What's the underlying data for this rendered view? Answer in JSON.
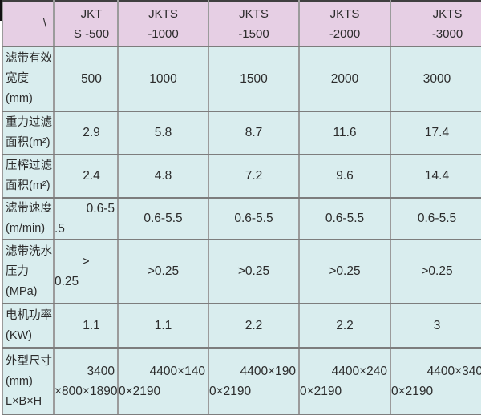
{
  "colors": {
    "header_bg": "#e6cfe4",
    "body_bg": "#d9edee",
    "border_v": "#9b9b9b",
    "border_h": "#7d7d7d",
    "top_border": "#3f3f3f",
    "text": "#2c2c2c",
    "tick": "#111111"
  },
  "table": {
    "corner_label": "\\",
    "columns": [
      {
        "line1": "JKT",
        "line2": "S -500"
      },
      {
        "line1": "JKTS",
        "line2": "-1000"
      },
      {
        "line1": "JKTS",
        "line2": "-1500"
      },
      {
        "line1": "JKTS",
        "line2": "-2000"
      },
      {
        "line1": "JKTS",
        "line2": "-3000"
      }
    ],
    "rows": [
      {
        "label_lines": [
          "滤带有效",
          "宽度",
          "(mm)"
        ],
        "values": [
          "500",
          "1000",
          "1500",
          "2000",
          "3000"
        ]
      },
      {
        "label_lines": [
          "重力过滤",
          "面积(m²)"
        ],
        "values": [
          "2.9",
          "5.8",
          "8.7",
          "11.6",
          "17.4"
        ]
      },
      {
        "label_lines": [
          "压榨过滤",
          "面积(m²)"
        ],
        "values": [
          "2.4",
          "4.8",
          "7.2",
          "9.6",
          "14.4"
        ]
      },
      {
        "label_lines": [
          "滤带速度",
          "(m/min)"
        ],
        "values": [
          {
            "line1": "0.6-5",
            "line2": ".5"
          },
          "0.6-5.5",
          "0.6-5.5",
          "0.6-5.5",
          "0.6-5.5"
        ]
      },
      {
        "label_lines": [
          "滤带洗水",
          "压力",
          "(MPa)"
        ],
        "values": [
          {
            "line1": ">",
            "line2": "0.25"
          },
          ">0.25",
          ">0.25",
          ">0.25",
          ">0.25"
        ]
      },
      {
        "label_lines": [
          "电机功率",
          "(KW)"
        ],
        "values": [
          "1.1",
          "1.1",
          "2.2",
          "2.2",
          "3"
        ]
      },
      {
        "label_lines": [
          "外型尺寸",
          "(mm)",
          "L×B×H"
        ],
        "values": [
          {
            "line1": "3400",
            "line2": "×800×1890"
          },
          {
            "line1": "4400×140",
            "line2": "0×2190"
          },
          {
            "line1": "4400×190",
            "line2": "0×2190"
          },
          {
            "line1": "4400×240",
            "line2": "0×2190"
          },
          {
            "line1": "4400×340",
            "line2": "0×2190"
          }
        ]
      }
    ]
  },
  "chart_data": {
    "type": "table",
    "title": "",
    "columns": [
      "JKTS-500",
      "JKTS-1000",
      "JKTS-1500",
      "JKTS-2000",
      "JKTS-3000"
    ],
    "rows": [
      {
        "parameter": "滤带有效宽度(mm)",
        "values": [
          500,
          1000,
          1500,
          2000,
          3000
        ]
      },
      {
        "parameter": "重力过滤面积(m²)",
        "values": [
          2.9,
          5.8,
          8.7,
          11.6,
          17.4
        ]
      },
      {
        "parameter": "压榨过滤面积(m²)",
        "values": [
          2.4,
          4.8,
          7.2,
          9.6,
          14.4
        ]
      },
      {
        "parameter": "滤带速度(m/min)",
        "values": [
          "0.6-5.5",
          "0.6-5.5",
          "0.6-5.5",
          "0.6-5.5",
          "0.6-5.5"
        ]
      },
      {
        "parameter": "滤带洗水压力(MPa)",
        "values": [
          ">0.25",
          ">0.25",
          ">0.25",
          ">0.25",
          ">0.25"
        ]
      },
      {
        "parameter": "电机功率(KW)",
        "values": [
          1.1,
          1.1,
          2.2,
          2.2,
          3
        ]
      },
      {
        "parameter": "外型尺寸(mm)L×B×H",
        "values": [
          "3400×800×1890",
          "4400×1400×2190",
          "4400×1900×2190",
          "4400×2400×2190",
          "4400×3400×2190"
        ]
      }
    ]
  }
}
